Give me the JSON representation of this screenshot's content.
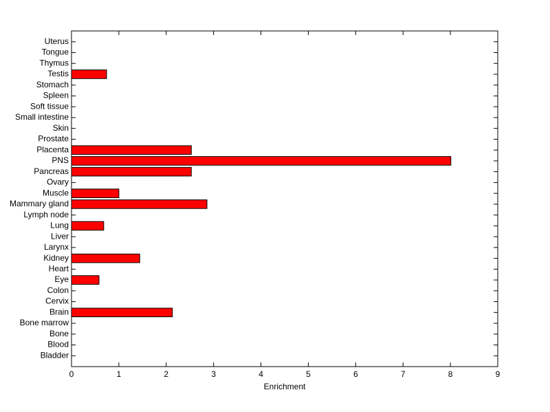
{
  "chart_data": {
    "type": "barh",
    "x_label": "Enrichment",
    "categories": [
      "Bladder",
      "Blood",
      "Bone",
      "Bone marrow",
      "Brain",
      "Cervix",
      "Colon",
      "Eye",
      "Heart",
      "Kidney",
      "Larynx",
      "Liver",
      "Lung",
      "Lymph node",
      "Mammary gland",
      "Muscle",
      "Ovary",
      "Pancreas",
      "PNS",
      "Placenta",
      "Prostate",
      "Skin",
      "Small intestine",
      "Soft tissue",
      "Spleen",
      "Stomach",
      "Testis",
      "Thymus",
      "Tongue",
      "Uterus"
    ],
    "values": [
      0,
      0,
      0,
      0,
      2.13,
      0,
      0,
      0.58,
      0,
      1.44,
      0,
      0,
      0.68,
      0,
      2.86,
      1.0,
      0,
      2.53,
      8.01,
      2.53,
      0,
      0,
      0,
      0,
      0,
      0,
      0.74,
      0,
      0,
      0
    ],
    "color": "#ff0000",
    "xlim": [
      0,
      9
    ],
    "xticks": [
      0,
      1,
      2,
      3,
      4,
      5,
      6,
      7,
      8,
      9
    ]
  }
}
